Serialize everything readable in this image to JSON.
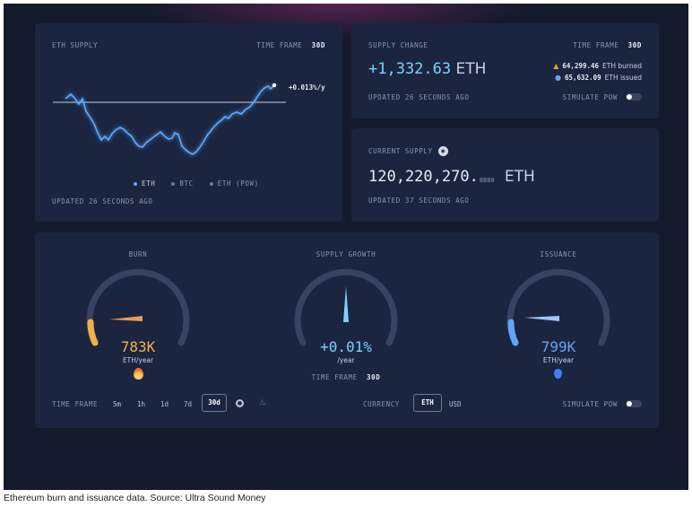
{
  "eth_supply": {
    "title": "ETH SUPPLY",
    "time_frame_label": "TIME FRAME",
    "time_frame_value": "30d",
    "change_label": "+0.013%/y",
    "legend": [
      {
        "name": "ETH",
        "color": "#60a5fa"
      },
      {
        "name": "BTC",
        "color": "#8a93b0"
      },
      {
        "name": "ETH (PoW)",
        "color": "#8a93b0"
      }
    ],
    "updated": "UPDATED 26 SECONDS AGO"
  },
  "supply_change": {
    "title": "SUPPLY CHANGE",
    "time_frame_label": "TIME FRAME",
    "time_frame_value": "30d",
    "value_prefix": "+1,332.63",
    "unit": "ETH",
    "burned_value": "64,299.46",
    "burned_label": "ETH burned",
    "issued_value": "65,632.09",
    "issued_label": "ETH issued",
    "updated": "UPDATED 26 SECONDS AGO",
    "simulate_label": "SIMULATE PoW"
  },
  "current_supply": {
    "title": "CURRENT SUPPLY",
    "value_main": "120,220,270.",
    "value_decimals": "8888",
    "unit": "ETH",
    "updated": "UPDATED 37 SECONDS AGO",
    "icon": "glasses-icon"
  },
  "gauges": {
    "burn": {
      "title": "BURN",
      "value": "783K",
      "unit": "ETH/year",
      "color": "#f0b048",
      "fraction": 0.49
    },
    "growth": {
      "title": "SUPPLY GROWTH",
      "value": "+0.01%",
      "unit": "/year",
      "color": "#7dd3fc",
      "fraction": 0.5,
      "time_frame_label": "TIME FRAME",
      "time_frame_value": "30d"
    },
    "issuance": {
      "title": "ISSUANCE",
      "value": "799K",
      "unit": "ETH/year",
      "color": "#60a5fa",
      "fraction": 0.5
    }
  },
  "footer": {
    "time_frame_label": "TIME FRAME",
    "time_frames": [
      "5m",
      "1h",
      "1d",
      "7d",
      "30d"
    ],
    "selected_time_frame": "30d",
    "currency_label": "CURRENCY",
    "currencies": [
      "ETH",
      "USD"
    ],
    "selected_currency": "ETH",
    "simulate_label": "SIMULATE PoW"
  },
  "caption": "Ethereum burn and issuance data. Source: Ultra Sound Money"
}
